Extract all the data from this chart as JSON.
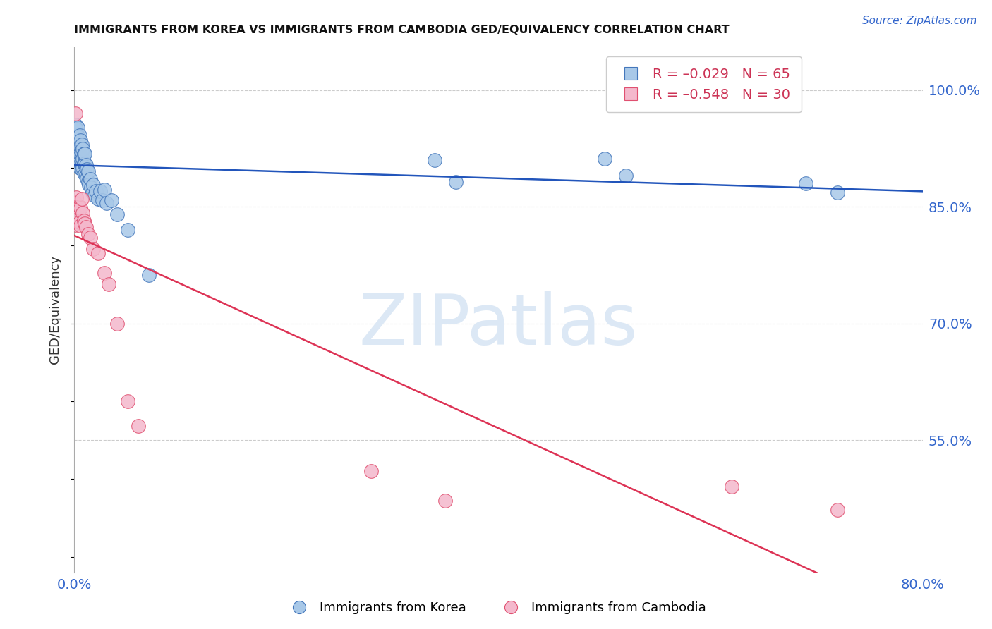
{
  "title": "IMMIGRANTS FROM KOREA VS IMMIGRANTS FROM CAMBODIA GED/EQUIVALENCY CORRELATION CHART",
  "source": "Source: ZipAtlas.com",
  "xtick_left": "0.0%",
  "xtick_right": "80.0%",
  "ylabel": "GED/Equivalency",
  "yticks": [
    0.55,
    0.7,
    0.85,
    1.0
  ],
  "ytick_labels": [
    "55.0%",
    "70.0%",
    "85.0%",
    "100.0%"
  ],
  "xmin": 0.0,
  "xmax": 0.8,
  "ymin": 0.38,
  "ymax": 1.055,
  "korea_R": -0.029,
  "korea_N": 65,
  "cambodia_R": -0.548,
  "cambodia_N": 30,
  "korea_color": "#a8c8e8",
  "cambodia_color": "#f4b8cc",
  "korea_edge_color": "#4477bb",
  "cambodia_edge_color": "#e05070",
  "korea_line_color": "#2255bb",
  "cambodia_line_color": "#dd3355",
  "watermark_text": "ZIPatlas",
  "watermark_color": "#dce8f5",
  "korea_x": [
    0.001,
    0.001,
    0.001,
    0.002,
    0.002,
    0.002,
    0.002,
    0.003,
    0.003,
    0.003,
    0.003,
    0.003,
    0.004,
    0.004,
    0.004,
    0.004,
    0.005,
    0.005,
    0.005,
    0.005,
    0.005,
    0.006,
    0.006,
    0.006,
    0.006,
    0.007,
    0.007,
    0.007,
    0.007,
    0.008,
    0.008,
    0.008,
    0.009,
    0.009,
    0.01,
    0.01,
    0.01,
    0.011,
    0.011,
    0.012,
    0.012,
    0.013,
    0.013,
    0.014,
    0.015,
    0.016,
    0.017,
    0.018,
    0.019,
    0.02,
    0.022,
    0.024,
    0.026,
    0.028,
    0.03,
    0.035,
    0.04,
    0.05,
    0.07,
    0.34,
    0.36,
    0.5,
    0.52,
    0.69,
    0.72
  ],
  "korea_y": [
    0.93,
    0.94,
    0.955,
    0.92,
    0.932,
    0.942,
    0.95,
    0.915,
    0.924,
    0.932,
    0.94,
    0.952,
    0.908,
    0.92,
    0.93,
    0.94,
    0.9,
    0.91,
    0.92,
    0.932,
    0.942,
    0.905,
    0.916,
    0.926,
    0.935,
    0.898,
    0.91,
    0.92,
    0.93,
    0.9,
    0.912,
    0.924,
    0.905,
    0.918,
    0.892,
    0.905,
    0.918,
    0.89,
    0.904,
    0.886,
    0.898,
    0.882,
    0.895,
    0.878,
    0.885,
    0.875,
    0.868,
    0.878,
    0.865,
    0.87,
    0.86,
    0.87,
    0.858,
    0.872,
    0.855,
    0.858,
    0.84,
    0.82,
    0.762,
    0.91,
    0.882,
    0.912,
    0.89,
    0.88,
    0.868
  ],
  "cambodia_x": [
    0.001,
    0.001,
    0.002,
    0.002,
    0.003,
    0.003,
    0.004,
    0.004,
    0.005,
    0.005,
    0.006,
    0.006,
    0.007,
    0.008,
    0.009,
    0.01,
    0.011,
    0.013,
    0.015,
    0.018,
    0.022,
    0.028,
    0.032,
    0.04,
    0.05,
    0.06,
    0.28,
    0.35,
    0.62,
    0.72
  ],
  "cambodia_y": [
    0.97,
    0.855,
    0.862,
    0.838,
    0.85,
    0.826,
    0.848,
    0.828,
    0.85,
    0.83,
    0.848,
    0.826,
    0.86,
    0.842,
    0.832,
    0.828,
    0.824,
    0.815,
    0.81,
    0.796,
    0.79,
    0.765,
    0.75,
    0.7,
    0.6,
    0.568,
    0.51,
    0.472,
    0.49,
    0.46
  ],
  "legend_korea_label": "Immigrants from Korea",
  "legend_cambodia_label": "Immigrants from Cambodia",
  "background_color": "#ffffff",
  "grid_color": "#cccccc",
  "right_axis_color": "#3366cc",
  "bottom_axis_color": "#3366cc",
  "marker_size": 200,
  "legend_r_korea_color": "#cc3355",
  "legend_r_cambodia_color": "#cc3355",
  "legend_n_color": "#2255bb"
}
